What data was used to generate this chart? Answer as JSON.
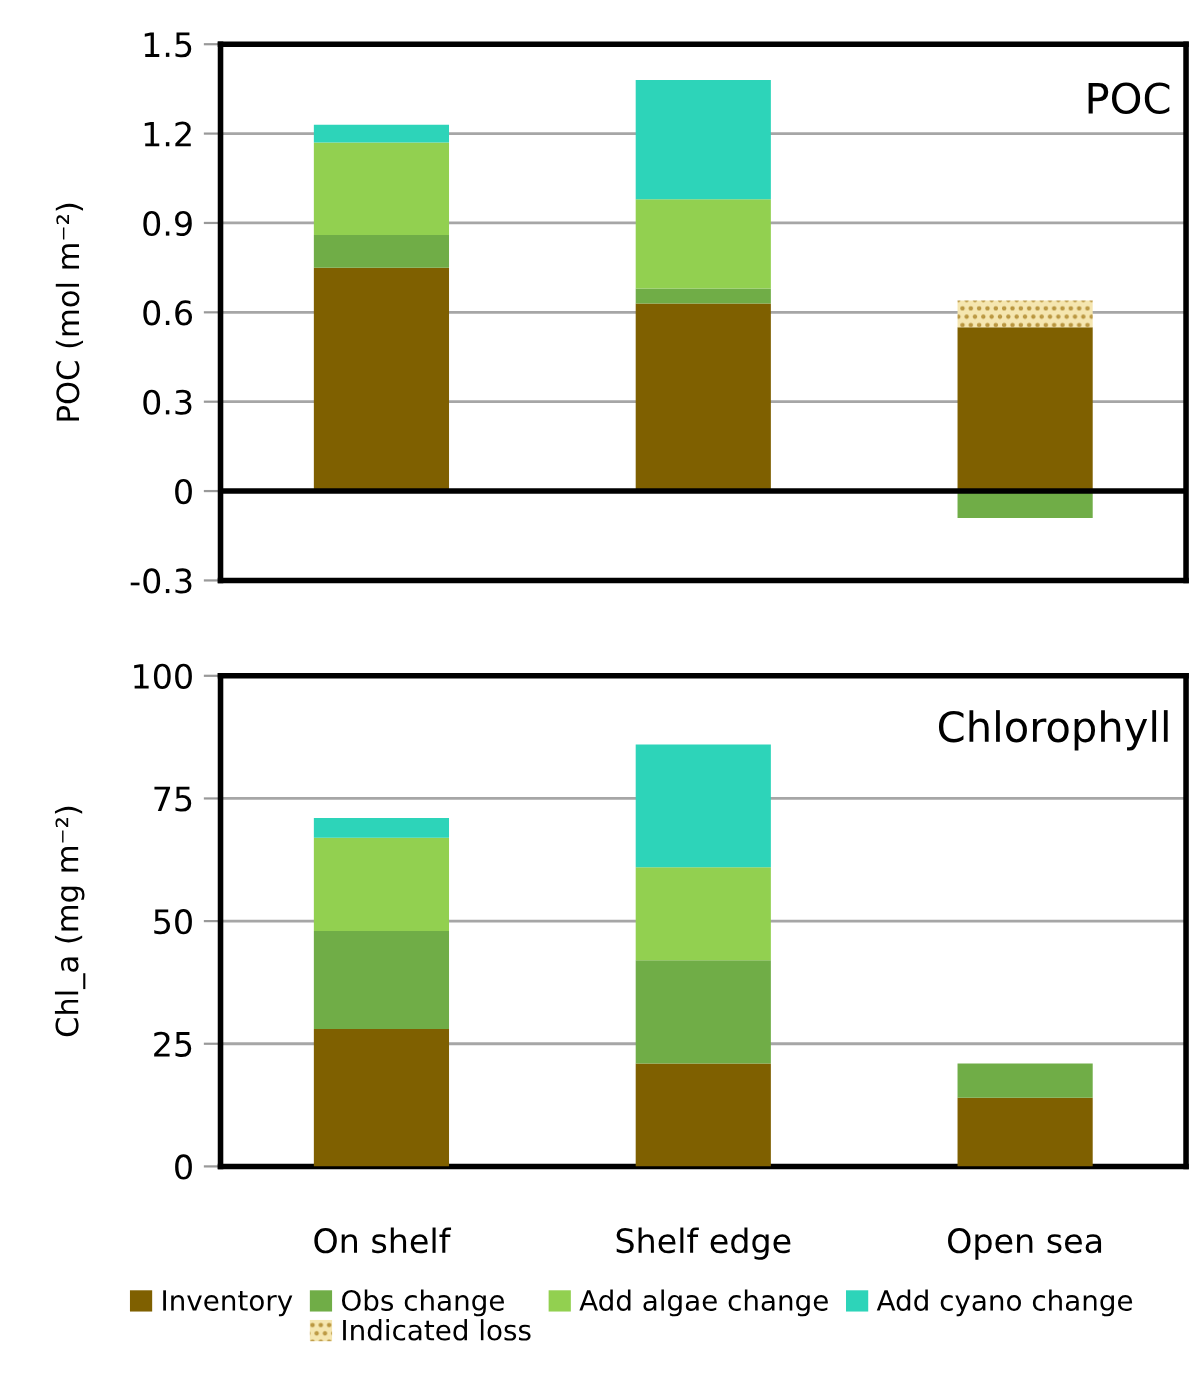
{
  "chart_data": [
    {
      "type": "bar",
      "title": "POC",
      "ylabel": "POC (mol m⁻²)",
      "categories": [
        null,
        null,
        null
      ],
      "stacked": true,
      "ylim": [
        -0.3,
        1.5
      ],
      "yticks": [
        -0.3,
        0,
        0.3,
        0.6,
        0.9,
        1.2,
        1.5
      ],
      "grid": "y",
      "legend": "bottom",
      "ref_lines": [
        {
          "axis": "y",
          "value": 0,
          "color": "#000000"
        }
      ],
      "series": [
        {
          "name": "Inventory",
          "color": "#7f6000",
          "values": [
            0.75,
            0.63,
            0.55
          ]
        },
        {
          "name": "Obs change",
          "color": "#70ad47",
          "values": [
            0.11,
            0.05,
            -0.09
          ]
        },
        {
          "name": "Add algae change",
          "color": "#92d050",
          "values": [
            0.31,
            0.3,
            null
          ]
        },
        {
          "name": "Add cyano change",
          "color": "#2dd4b9",
          "values": [
            0.06,
            0.4,
            null
          ]
        },
        {
          "name": "Indicated loss",
          "color": "#b8943c",
          "values": [
            null,
            null,
            0.09
          ]
        }
      ]
    },
    {
      "type": "bar",
      "title": "Chlorophyll",
      "ylabel": "Chl_a (mg m⁻²)",
      "categories": [
        "On shelf",
        "Shelf edge",
        "Open sea"
      ],
      "stacked": true,
      "ylim": [
        0,
        100
      ],
      "yticks": [
        0,
        25,
        50,
        75,
        100
      ],
      "grid": "y",
      "series": [
        {
          "color": "#7f6000",
          "values": [
            28,
            21,
            14
          ]
        },
        {
          "color": "#70ad47",
          "values": [
            20,
            21,
            7
          ]
        },
        {
          "color": "#92d050",
          "values": [
            19,
            19,
            null
          ]
        },
        {
          "color": "#2dd4b9",
          "values": [
            4,
            25,
            null
          ]
        }
      ]
    }
  ]
}
